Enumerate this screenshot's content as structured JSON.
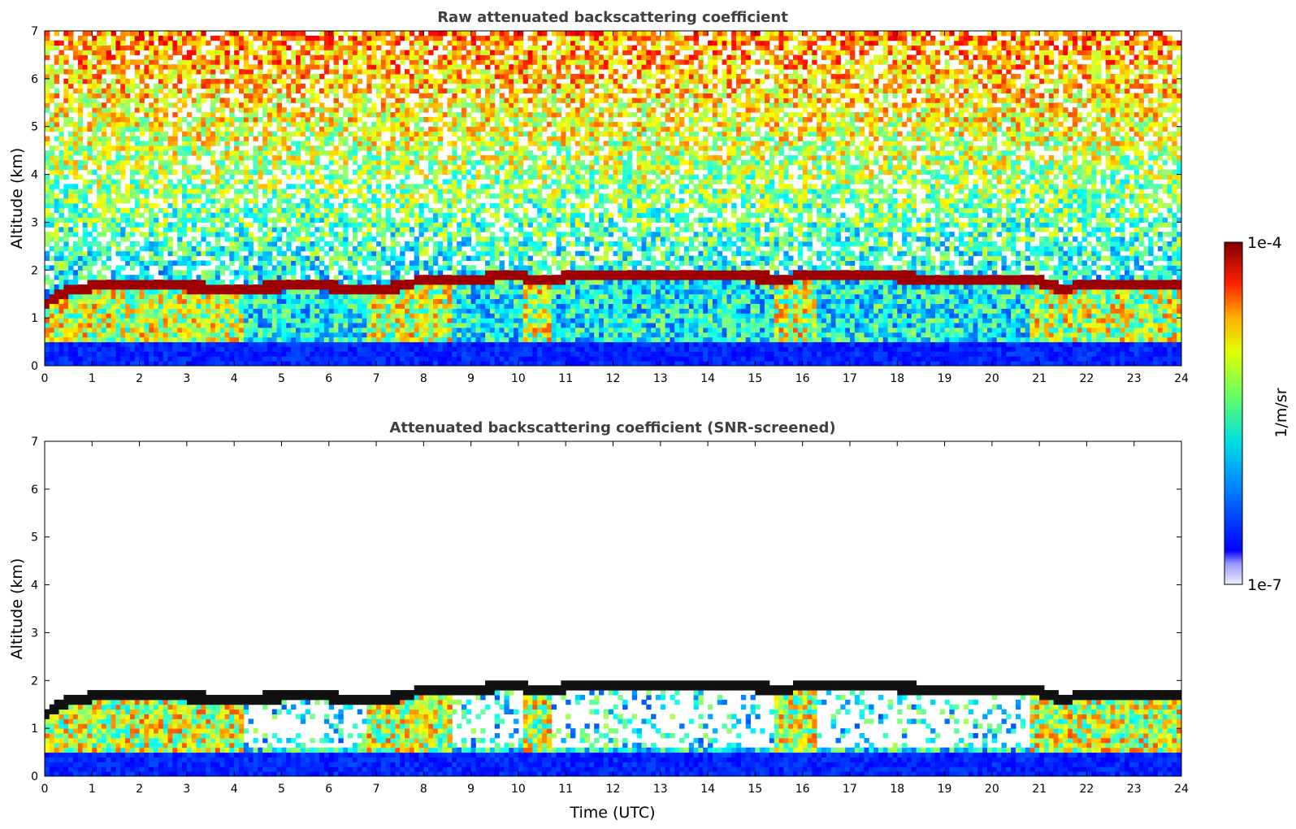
{
  "chart_data": [
    {
      "type": "heatmap",
      "title": "Raw attenuated backscattering coefficient",
      "xlabel": "",
      "ylabel": "Altitude (km)",
      "xlim": [
        0,
        24
      ],
      "ylim": [
        0,
        7
      ],
      "x_ticks": [
        "0",
        "1",
        "2",
        "3",
        "4",
        "5",
        "6",
        "7",
        "8",
        "9",
        "10",
        "11",
        "12",
        "13",
        "14",
        "15",
        "16",
        "17",
        "18",
        "19",
        "20",
        "21",
        "22",
        "23",
        "24"
      ],
      "y_ticks": [
        "0",
        "1",
        "2",
        "3",
        "4",
        "5",
        "6",
        "7"
      ],
      "screened": false,
      "cloud_base_km": [
        [
          0.0,
          1.2
        ],
        [
          0.3,
          1.5
        ],
        [
          1.0,
          1.65
        ],
        [
          2.0,
          1.65
        ],
        [
          3.0,
          1.65
        ],
        [
          4.0,
          1.6
        ],
        [
          5.0,
          1.65
        ],
        [
          6.0,
          1.65
        ],
        [
          6.5,
          1.6
        ],
        [
          7.0,
          1.6
        ],
        [
          7.5,
          1.65
        ],
        [
          8.0,
          1.8
        ],
        [
          9.0,
          1.8
        ],
        [
          10.0,
          1.9
        ],
        [
          10.4,
          1.75
        ],
        [
          11.0,
          1.85
        ],
        [
          12.0,
          1.85
        ],
        [
          13.0,
          1.85
        ],
        [
          14.0,
          1.85
        ],
        [
          15.0,
          1.85
        ],
        [
          15.7,
          1.8
        ],
        [
          16.0,
          1.9
        ],
        [
          17.0,
          1.9
        ],
        [
          18.0,
          1.85
        ],
        [
          19.0,
          1.8
        ],
        [
          20.0,
          1.78
        ],
        [
          21.0,
          1.75
        ],
        [
          21.5,
          1.6
        ],
        [
          22.0,
          1.7
        ],
        [
          23.0,
          1.68
        ],
        [
          24.0,
          1.65
        ]
      ]
    },
    {
      "type": "heatmap",
      "title": "Attenuated backscattering coefficient (SNR-screened)",
      "xlabel": "Time (UTC)",
      "ylabel": "Altitude (km)",
      "xlim": [
        0,
        24
      ],
      "ylim": [
        0,
        7
      ],
      "x_ticks": [
        "0",
        "1",
        "2",
        "3",
        "4",
        "5",
        "6",
        "7",
        "8",
        "9",
        "10",
        "11",
        "12",
        "13",
        "14",
        "15",
        "16",
        "17",
        "18",
        "19",
        "20",
        "21",
        "22",
        "23",
        "24"
      ],
      "y_ticks": [
        "0",
        "1",
        "2",
        "3",
        "4",
        "5",
        "6",
        "7"
      ],
      "screened": true
    }
  ],
  "colorbar": {
    "label": "1/m/sr",
    "max_label": "1e-4",
    "min_label": "1e-7",
    "scale": "log",
    "colormap": "jet"
  }
}
